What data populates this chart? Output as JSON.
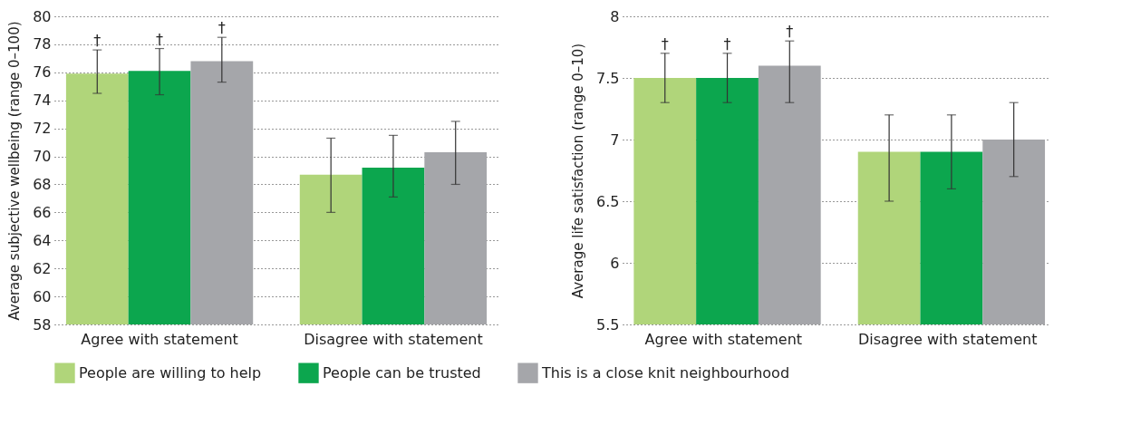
{
  "chart_data": [
    {
      "type": "bar",
      "ylabel": "Average subjective wellbeing (range 0–100)",
      "categories": [
        "Agree with statement",
        "Disagree with statement"
      ],
      "series": [
        {
          "name": "People are willing to help",
          "color": "#b0d57a",
          "values": [
            75.9,
            68.7
          ],
          "errors": [
            [
              74.5,
              77.6
            ],
            [
              66.0,
              71.3
            ]
          ],
          "value_labels": [
            "†",
            null
          ]
        },
        {
          "name": "People can be trusted",
          "color": "#0ca64e",
          "values": [
            76.1,
            69.2
          ],
          "errors": [
            [
              74.4,
              77.7
            ],
            [
              67.1,
              71.5
            ]
          ],
          "value_labels": [
            "†",
            null
          ]
        },
        {
          "name": "This is a close knit neighbourhood",
          "color": "#a5a6aa",
          "values": [
            76.8,
            70.3
          ],
          "errors": [
            [
              75.3,
              78.5
            ],
            [
              68.0,
              72.5
            ]
          ],
          "value_labels": [
            "†",
            null
          ]
        }
      ],
      "ylim": [
        58,
        80
      ],
      "yticks": [
        58,
        60,
        62,
        64,
        66,
        68,
        70,
        72,
        74,
        76,
        78,
        80
      ],
      "grid": "y",
      "legend": "bottom"
    },
    {
      "type": "bar",
      "ylabel": "Average life satisfaction (range 0–10)",
      "categories": [
        "Agree with statement",
        "Disagree with statement"
      ],
      "series": [
        {
          "name": "People are willing to help",
          "color": "#b0d57a",
          "values": [
            7.5,
            6.9
          ],
          "errors": [
            [
              7.3,
              7.7
            ],
            [
              6.5,
              7.2
            ]
          ],
          "value_labels": [
            "†",
            null
          ]
        },
        {
          "name": "People can be trusted",
          "color": "#0ca64e",
          "values": [
            7.5,
            6.9
          ],
          "errors": [
            [
              7.3,
              7.7
            ],
            [
              6.6,
              7.2
            ]
          ],
          "value_labels": [
            "†",
            null
          ]
        },
        {
          "name": "This is a close knit neighbourhood",
          "color": "#a5a6aa",
          "values": [
            7.6,
            7.0
          ],
          "errors": [
            [
              7.3,
              7.8
            ],
            [
              6.7,
              7.3
            ]
          ],
          "value_labels": [
            "†",
            null
          ]
        }
      ],
      "ylim": [
        5.5,
        8
      ],
      "yticks": [
        5.5,
        6,
        6.5,
        7,
        7.5,
        8
      ],
      "grid": "y",
      "legend": "bottom"
    }
  ]
}
